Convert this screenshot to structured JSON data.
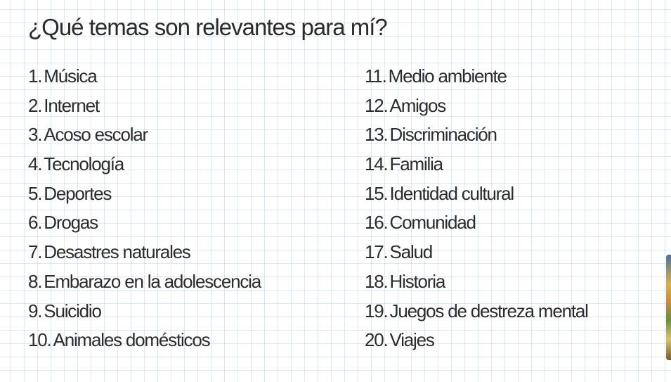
{
  "title": "¿Qué temas son relevantes para mí?",
  "left_column": [
    {
      "num": "1.",
      "text": "Música"
    },
    {
      "num": "2.",
      "text": "Internet"
    },
    {
      "num": "3.",
      "text": "Acoso escolar"
    },
    {
      "num": "4.",
      "text": "Tecnología"
    },
    {
      "num": "5.",
      "text": "Deportes"
    },
    {
      "num": "6.",
      "text": "Drogas"
    },
    {
      "num": "7.",
      "text": "Desastres naturales"
    },
    {
      "num": "8.",
      "text": "Embarazo en la adolescencia"
    },
    {
      "num": "9.",
      "text": "Suicidio"
    },
    {
      "num": "10.",
      "text": "Animales domésticos"
    }
  ],
  "right_column": [
    {
      "num": "11.",
      "text": "Medio ambiente"
    },
    {
      "num": "12.",
      "text": "Amigos"
    },
    {
      "num": "13.",
      "text": "Discriminación"
    },
    {
      "num": "14.",
      "text": "Familia"
    },
    {
      "num": "15.",
      "text": "Identidad cultural"
    },
    {
      "num": "16.",
      "text": "Comunidad"
    },
    {
      "num": "17.",
      "text": "Salud"
    },
    {
      "num": "18.",
      "text": "Historia"
    },
    {
      "num": "19.",
      "text": "Juegos de destreza mental"
    },
    {
      "num": "20.",
      "text": "Viajes"
    }
  ],
  "colors": {
    "text": "#2c2c2c",
    "grid": "#96b9d7",
    "background": "#ffffff"
  }
}
